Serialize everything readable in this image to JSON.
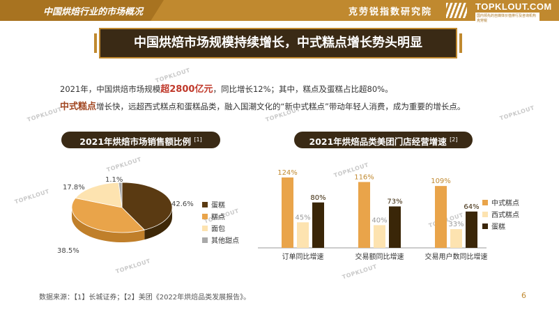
{
  "header": {
    "section_title": "中国烘焙行业的市场概况",
    "org_name": "克劳锐指数研究院",
    "logo_text": "TOPKLOUT.COM",
    "logo_sub": "国内领先的自媒体价值排行及咨询机构 克劳锐"
  },
  "banner": {
    "title": "中国烘焙市场规模持续增长，中式糕点增长势头明显"
  },
  "summary": {
    "line1_a": "2021年，中国烘焙市场规模",
    "line1_hl": "超2800亿元",
    "line1_b": "，同比增长12%；其中，糕点及蛋糕占比超80%。",
    "line2_hl": "中式糕点",
    "line2_b": "增长快，远超西式糕点和蛋糕品类，融入国潮文化的“新中式糕点”带动年轻人消费，成为重要的增长点。"
  },
  "watermark": "TOPKLOUT",
  "pie_panel": {
    "title": "2021年烘焙市场销售额比例",
    "ref": "[1]"
  },
  "bar_panel": {
    "title": "2021年烘焙品类美团门店经营增速",
    "ref": "[2]"
  },
  "colors": {
    "cake": "#5a3a12",
    "pastry": "#e9a44a",
    "bread": "#fde3b0",
    "other": "#a9a9a9",
    "chinese": "#e9a44a",
    "western": "#fde3b0",
    "cake_bar": "#3a2608"
  },
  "chart_data": [
    {
      "type": "pie",
      "title": "2021年烘焙市场销售额比例",
      "slices": [
        {
          "name": "蛋糕",
          "value": 42.6,
          "label": "42.6%"
        },
        {
          "name": "糕点",
          "value": 38.5,
          "label": "38.5%"
        },
        {
          "name": "面包",
          "value": 17.8,
          "label": "17.8%"
        },
        {
          "name": "其他甜点",
          "value": 1.1,
          "label": "1.1%"
        }
      ],
      "legend_position": "right"
    },
    {
      "type": "bar",
      "title": "2021年烘焙品类美团门店经营增速",
      "categories": [
        "订单同比增速",
        "交易额同比增速",
        "交易用户数同比增速"
      ],
      "series": [
        {
          "name": "中式糕点",
          "values": [
            124,
            116,
            109
          ],
          "labels": [
            "124%",
            "116%",
            "109%"
          ]
        },
        {
          "name": "西式糕点",
          "values": [
            45,
            40,
            33
          ],
          "labels": [
            "45%",
            "40%",
            "33%"
          ]
        },
        {
          "name": "蛋糕",
          "values": [
            80,
            73,
            64
          ],
          "labels": [
            "80%",
            "73%",
            "64%"
          ]
        }
      ],
      "ylim": [
        0,
        130
      ],
      "legend_position": "right"
    }
  ],
  "footer": {
    "source": "数据来源：【1】长城证券；【2】美团《2022年烘焙品类发展报告》。",
    "page": "6"
  }
}
